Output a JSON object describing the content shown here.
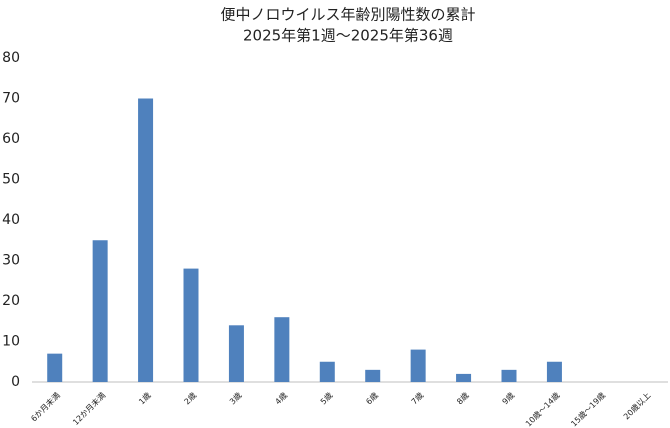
{
  "chart_data": {
    "type": "bar",
    "title": "便中ノロウイルス年齢別陽性数の累計",
    "subtitle": "2025年第1週～2025年第36週",
    "categories": [
      "6か月未満",
      "12か月未満",
      "1歳",
      "2歳",
      "3歳",
      "4歳",
      "5歳",
      "6歳",
      "7歳",
      "8歳",
      "9歳",
      "10歳～14歳",
      "15歳～19歳",
      "20歳以上"
    ],
    "values": [
      7,
      35,
      70,
      28,
      14,
      16,
      5,
      3,
      8,
      2,
      3,
      5,
      0,
      0
    ],
    "color": "#4f81bd",
    "ylim": [
      0,
      80
    ],
    "yticks": [
      0,
      10,
      20,
      30,
      40,
      50,
      60,
      70,
      80
    ],
    "grid": false
  }
}
